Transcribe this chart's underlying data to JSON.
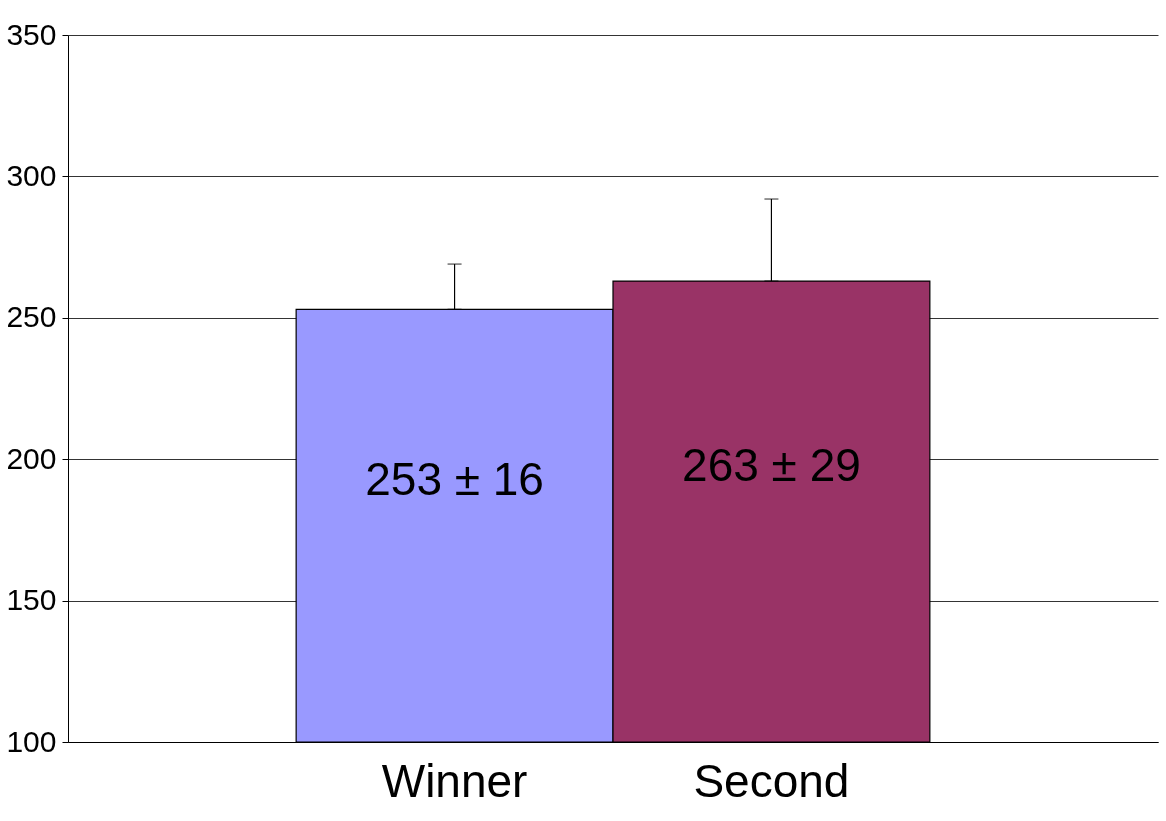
{
  "chart_data": {
    "type": "bar",
    "categories": [
      "Winner",
      "Second"
    ],
    "values": [
      253,
      263
    ],
    "colors": [
      "#9999ff",
      "#993366"
    ],
    "errors": [
      [
        253,
        269
      ],
      [
        263,
        292
      ]
    ],
    "value_labels": [
      "253 ± 16",
      "263 ± 29"
    ],
    "ylim": [
      100,
      350
    ],
    "yticks": [
      100,
      150,
      200,
      250,
      300,
      350
    ],
    "grid": "y"
  }
}
